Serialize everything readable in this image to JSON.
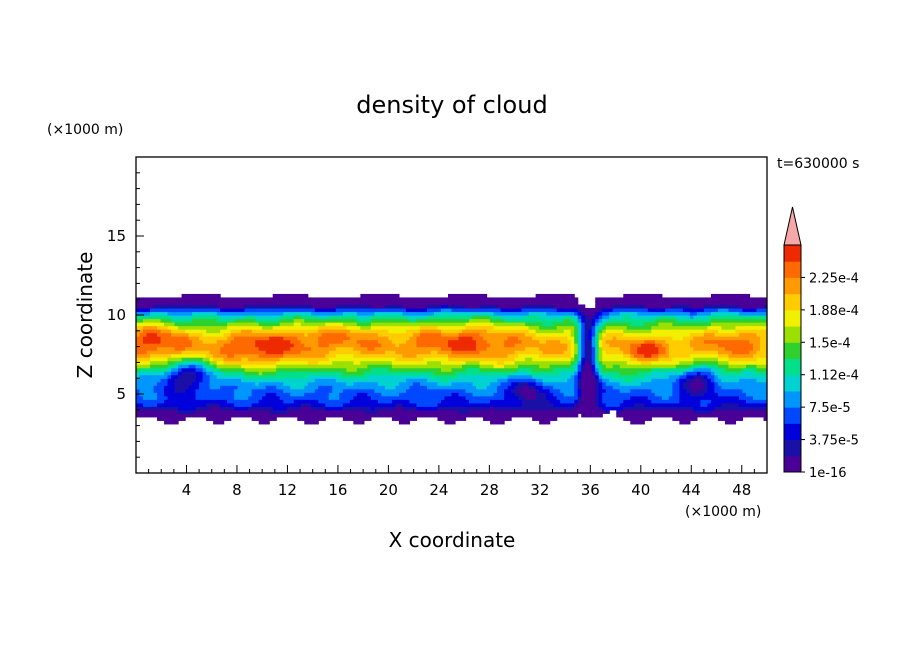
{
  "chart_data": {
    "type": "heatmap",
    "title": "density of cloud",
    "xlabel": "X coordinate",
    "ylabel": "Z coordinate",
    "x_unit": "(×1000 m)",
    "y_unit": "(×1000 m)",
    "time_label": "t=630000 s",
    "xlim": [
      0,
      50
    ],
    "ylim": [
      0,
      20
    ],
    "x_ticks": [
      4,
      8,
      12,
      16,
      20,
      24,
      28,
      32,
      36,
      40,
      44,
      48
    ],
    "y_ticks": [
      5,
      10,
      15
    ],
    "cloud_base_km": 3.4,
    "cloud_top_km": 11.2,
    "colorbar": {
      "levels": [
        1e-16,
        1.875e-05,
        3.75e-05,
        5.625e-05,
        7.5e-05,
        9.375e-05,
        0.0001125,
        0.00013125,
        0.00015,
        0.00016875,
        0.0001875,
        0.00020625,
        0.000225,
        0.00024375
      ],
      "labels": [
        "1e-16",
        "3.75e-5",
        "7.5e-5",
        "1.12e-4",
        "1.5e-4",
        "1.88e-4",
        "2.25e-4"
      ],
      "colors": [
        "#4a0096",
        "#1a10a8",
        "#0000dc",
        "#0048ff",
        "#0096ff",
        "#00d2d2",
        "#00e08a",
        "#2ed12e",
        "#9be000",
        "#f0f000",
        "#ffcc00",
        "#ff9a00",
        "#ff6a00",
        "#ee2a00"
      ],
      "over_color": "#f6a8a8"
    }
  }
}
